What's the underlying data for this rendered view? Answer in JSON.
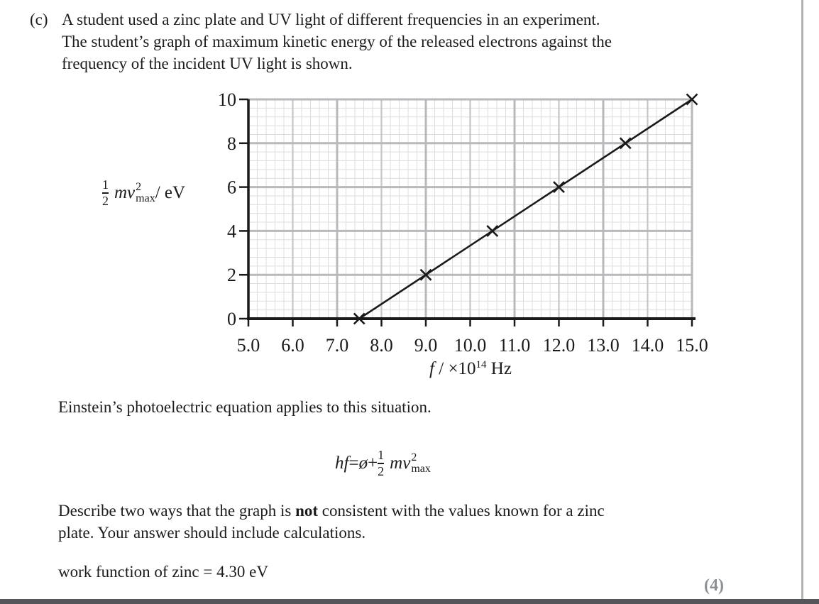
{
  "page": {
    "question_label": "(c)",
    "question_lines": [
      "A student used a zinc plate and UV light of different frequencies in an experiment.",
      "The student’s graph of maximum kinetic energy of the released electrons against the",
      "frequency of the incident UV light is shown."
    ],
    "einstein_text": "Einstein’s photoelectric equation applies to this situation.",
    "describe": {
      "line1_pre": "Describe two ways that the graph is ",
      "line1_bold": "not",
      "line1_post": " consistent with the values known for a zinc",
      "line2": "plate. Your answer should include calculations."
    },
    "work_function_text": "work function of zinc = 4.30 eV",
    "marks_label": "(4)"
  },
  "equation": {
    "lhs": "hf",
    "equals": " = ",
    "phi": "ø",
    "plus": " + ",
    "frac_num": "1",
    "frac_den": "2",
    "term": "mv",
    "sup": "2",
    "sub": "max"
  },
  "chart_data": {
    "type": "scatter",
    "title": "",
    "xlabel": "f / ×10¹⁴ Hz",
    "ylabel": "(1/2)mv²max / eV",
    "x_axis": {
      "label_var": "f",
      "label_mid": " / ×10",
      "label_sup": "14",
      "label_unit": " Hz",
      "lim": [
        5.0,
        15.0
      ],
      "tick_values": [
        5,
        6,
        7,
        8,
        9,
        10,
        11,
        12,
        13,
        14,
        15
      ],
      "tick_labels": [
        "5.0",
        "6.0",
        "7.0",
        "8.0",
        "9.0",
        "10.0",
        "11.0",
        "12.0",
        "13.0",
        "14.0",
        "15.0"
      ],
      "minor_step": 0.2,
      "medium_step": 1.0,
      "major_step": 2.0
    },
    "y_axis": {
      "label_frac_num": "1",
      "label_frac_den": "2",
      "label_term": "mv",
      "label_sup": "2",
      "label_sub": "max",
      "label_unit": " / eV",
      "lim": [
        0,
        10
      ],
      "tick_values": [
        0,
        2,
        4,
        6,
        8,
        10
      ],
      "tick_labels": [
        "0",
        "2",
        "4",
        "6",
        "8",
        "10"
      ],
      "minor_step": 0.4,
      "major_step": 2.0
    },
    "points": [
      [
        7.5,
        0
      ],
      [
        9.0,
        2
      ],
      [
        10.5,
        4
      ],
      [
        12.0,
        6
      ],
      [
        13.5,
        8
      ],
      [
        15.0,
        10
      ]
    ],
    "line_endpoints": [
      [
        7.5,
        0
      ],
      [
        15.0,
        10
      ]
    ],
    "marker": "x",
    "grid": "on",
    "legend": "none"
  },
  "colors": {
    "text": "#1c1c1c",
    "axis": "#1a1a1a",
    "data": "#1a1a1a",
    "grid_minor": "#dddde0",
    "grid_medium": "#c6c6c9",
    "grid_major": "#b9b9bc",
    "marks_gray": "#8d9198",
    "page_edge_gray": "#b0b2b5",
    "footer_bar_gray": "#55565a"
  }
}
